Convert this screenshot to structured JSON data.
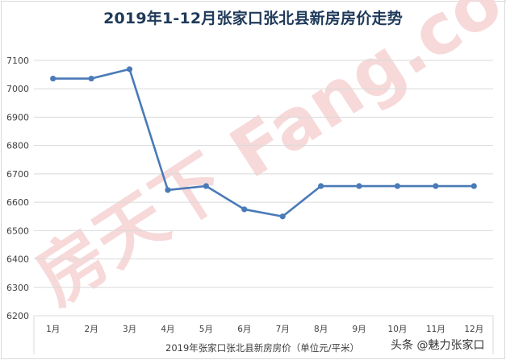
{
  "title": "2019年1-12月张家口张北县新房房价走势",
  "x_axis_title": "2019年张家口张北县新房房价（单位元/平米）",
  "credit": "头条 @魅力张家口",
  "watermark": "房天下 Fang.com",
  "colors": {
    "line": "#4a7ab8",
    "title": "#1f3a5a",
    "grid": "#d9d9d9",
    "watermark": "#f7d9d9"
  },
  "chart_data": {
    "type": "line",
    "title": "2019年1-12月张家口张北县新房房价走势",
    "xlabel": "2019年张家口张北县新房房价（单位元/平米）",
    "ylabel": "",
    "categories": [
      "1月",
      "2月",
      "3月",
      "4月",
      "5月",
      "6月",
      "7月",
      "8月",
      "9月",
      "10月",
      "11月",
      "12月"
    ],
    "series": [
      {
        "name": "新房房价",
        "values": [
          7036,
          7036,
          7069,
          6643,
          6657,
          6575,
          6550,
          6657,
          6657,
          6657,
          6657,
          6657
        ]
      }
    ],
    "yticks": [
      6200,
      6300,
      6400,
      6500,
      6600,
      6700,
      6800,
      6900,
      7000,
      7100
    ],
    "ylim": [
      6200,
      7100
    ],
    "grid": true,
    "legend": "none",
    "markers": true
  }
}
